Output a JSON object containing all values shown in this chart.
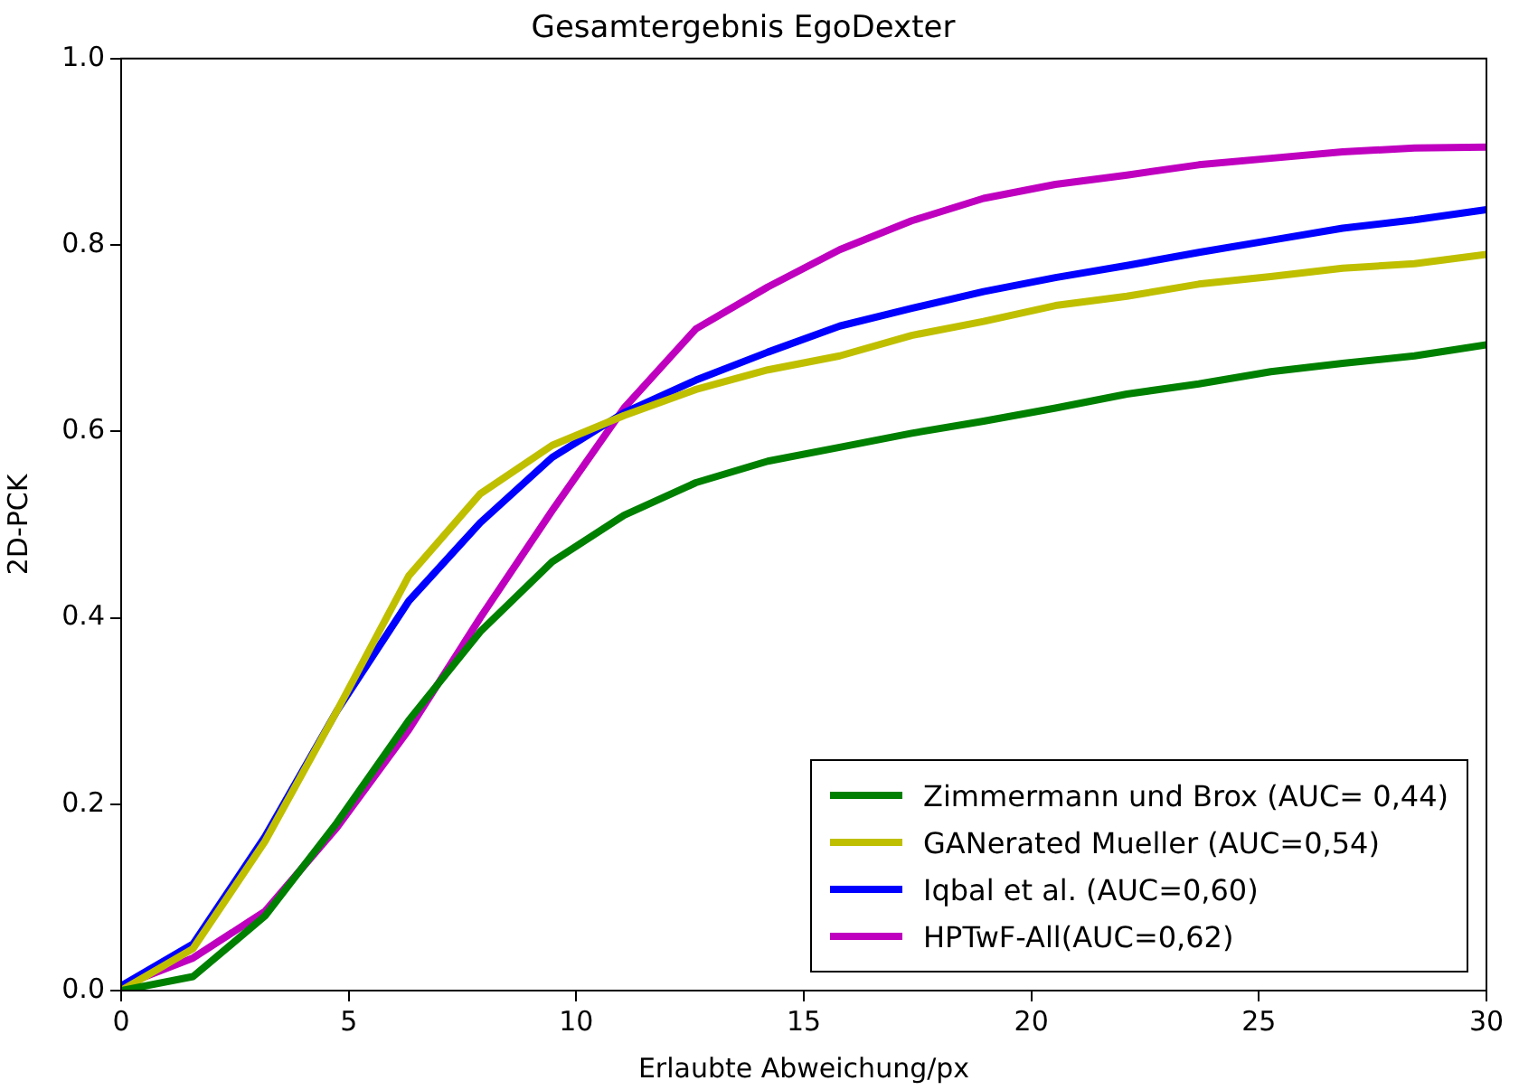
{
  "chart_data": {
    "type": "line",
    "title": "Gesamtergebnis EgoDexter",
    "xlabel": "Erlaubte Abweichung/px",
    "ylabel": "2D-PCK",
    "x": [
      0,
      1.58,
      3.16,
      4.74,
      6.32,
      7.89,
      9.47,
      11.05,
      12.63,
      14.21,
      15.79,
      17.37,
      18.95,
      20.53,
      22.1,
      23.68,
      25.26,
      26.84,
      28.42,
      30
    ],
    "series": [
      {
        "name": "Zimmermann und Brox (AUC= 0,44)",
        "color": "#008000",
        "values": [
          0,
          0.015,
          0.08,
          0.18,
          0.29,
          0.385,
          0.46,
          0.51,
          0.545,
          0.568,
          0.583,
          0.598,
          0.611,
          0.625,
          0.64,
          0.651,
          0.664,
          0.673,
          0.681,
          0.693
        ]
      },
      {
        "name": "GANerated Mueller (AUC=0,54)",
        "color": "#bfbf00",
        "values": [
          0,
          0.045,
          0.16,
          0.3,
          0.445,
          0.533,
          0.585,
          0.617,
          0.645,
          0.666,
          0.681,
          0.703,
          0.718,
          0.735,
          0.745,
          0.758,
          0.766,
          0.775,
          0.78,
          0.79
        ]
      },
      {
        "name": "Iqbal et al. (AUC=0,60)",
        "color": "#0000ff",
        "values": [
          0.005,
          0.05,
          0.165,
          0.3,
          0.418,
          0.502,
          0.572,
          0.62,
          0.655,
          0.685,
          0.713,
          0.732,
          0.75,
          0.765,
          0.778,
          0.792,
          0.805,
          0.818,
          0.827,
          0.838
        ]
      },
      {
        "name": "HPTwF-All(AUC=0,62)",
        "color": "#bf00bf",
        "values": [
          0.005,
          0.035,
          0.085,
          0.175,
          0.28,
          0.4,
          0.515,
          0.625,
          0.71,
          0.755,
          0.795,
          0.826,
          0.85,
          0.865,
          0.875,
          0.886,
          0.893,
          0.9,
          0.904,
          0.905
        ]
      }
    ],
    "xlim": [
      0,
      30
    ],
    "xticks": [
      0,
      5,
      10,
      15,
      20,
      25,
      30
    ],
    "ylim": [
      0,
      1
    ],
    "yticks": [
      {
        "value": 0,
        "label": "0.0"
      },
      0.2,
      0.4,
      0.6,
      0.8,
      {
        "value": 1,
        "label": "1.0"
      }
    ],
    "grid": false,
    "legend": "bottom right",
    "marker": "none",
    "line_style": "solid"
  }
}
